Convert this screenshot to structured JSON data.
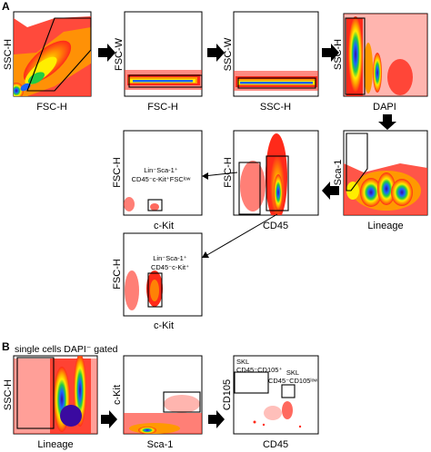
{
  "panel_labels": {
    "a": "A",
    "b": "B"
  },
  "plots": {
    "a1": {
      "x": "FSC-H",
      "y": "SSC-H"
    },
    "a2": {
      "x": "FSC-H",
      "y": "FSC-W"
    },
    "a3": {
      "x": "SSC-H",
      "y": "SSC-W"
    },
    "a4": {
      "x": "DAPI",
      "y": "SSC-H"
    },
    "a5": {
      "x": "Lineage",
      "y": "Sca-1"
    },
    "a6": {
      "x": "CD45",
      "y": "FSC-H"
    },
    "a7": {
      "x": "c-Kit",
      "y": "FSC-H"
    },
    "a8": {
      "x": "c-Kit",
      "y": "FSC-H"
    },
    "b1": {
      "x": "Lineage",
      "y": "SSC-H"
    },
    "b2": {
      "x": "Sca-1",
      "y": "c-Kit"
    },
    "b3": {
      "x": "CD45",
      "y": "CD105"
    }
  },
  "annotations": {
    "a7_l1": "Lin⁻Sca-1⁺",
    "a7_l2": "CD45⁻c-Kit⁺FSCˡᵒʷ",
    "a8_l1": "Lin⁻Sca-1⁺",
    "a8_l2": "CD45⁻c-Kit⁺",
    "b_note": "single cells DAPI⁻ gated",
    "b3_g1_l1": "SKL",
    "b3_g1_l2": "CD45⁻CD105⁺",
    "b3_g2_l1": "SKL",
    "b3_g2_l2": "CD45⁻CD105ˡᵒʷ"
  },
  "colors": {
    "low": "#ff2a1a",
    "mid1": "#ff9900",
    "mid2": "#ffee00",
    "high1": "#22cc44",
    "high2": "#1a66ff",
    "peak": "#3a0aa0"
  }
}
